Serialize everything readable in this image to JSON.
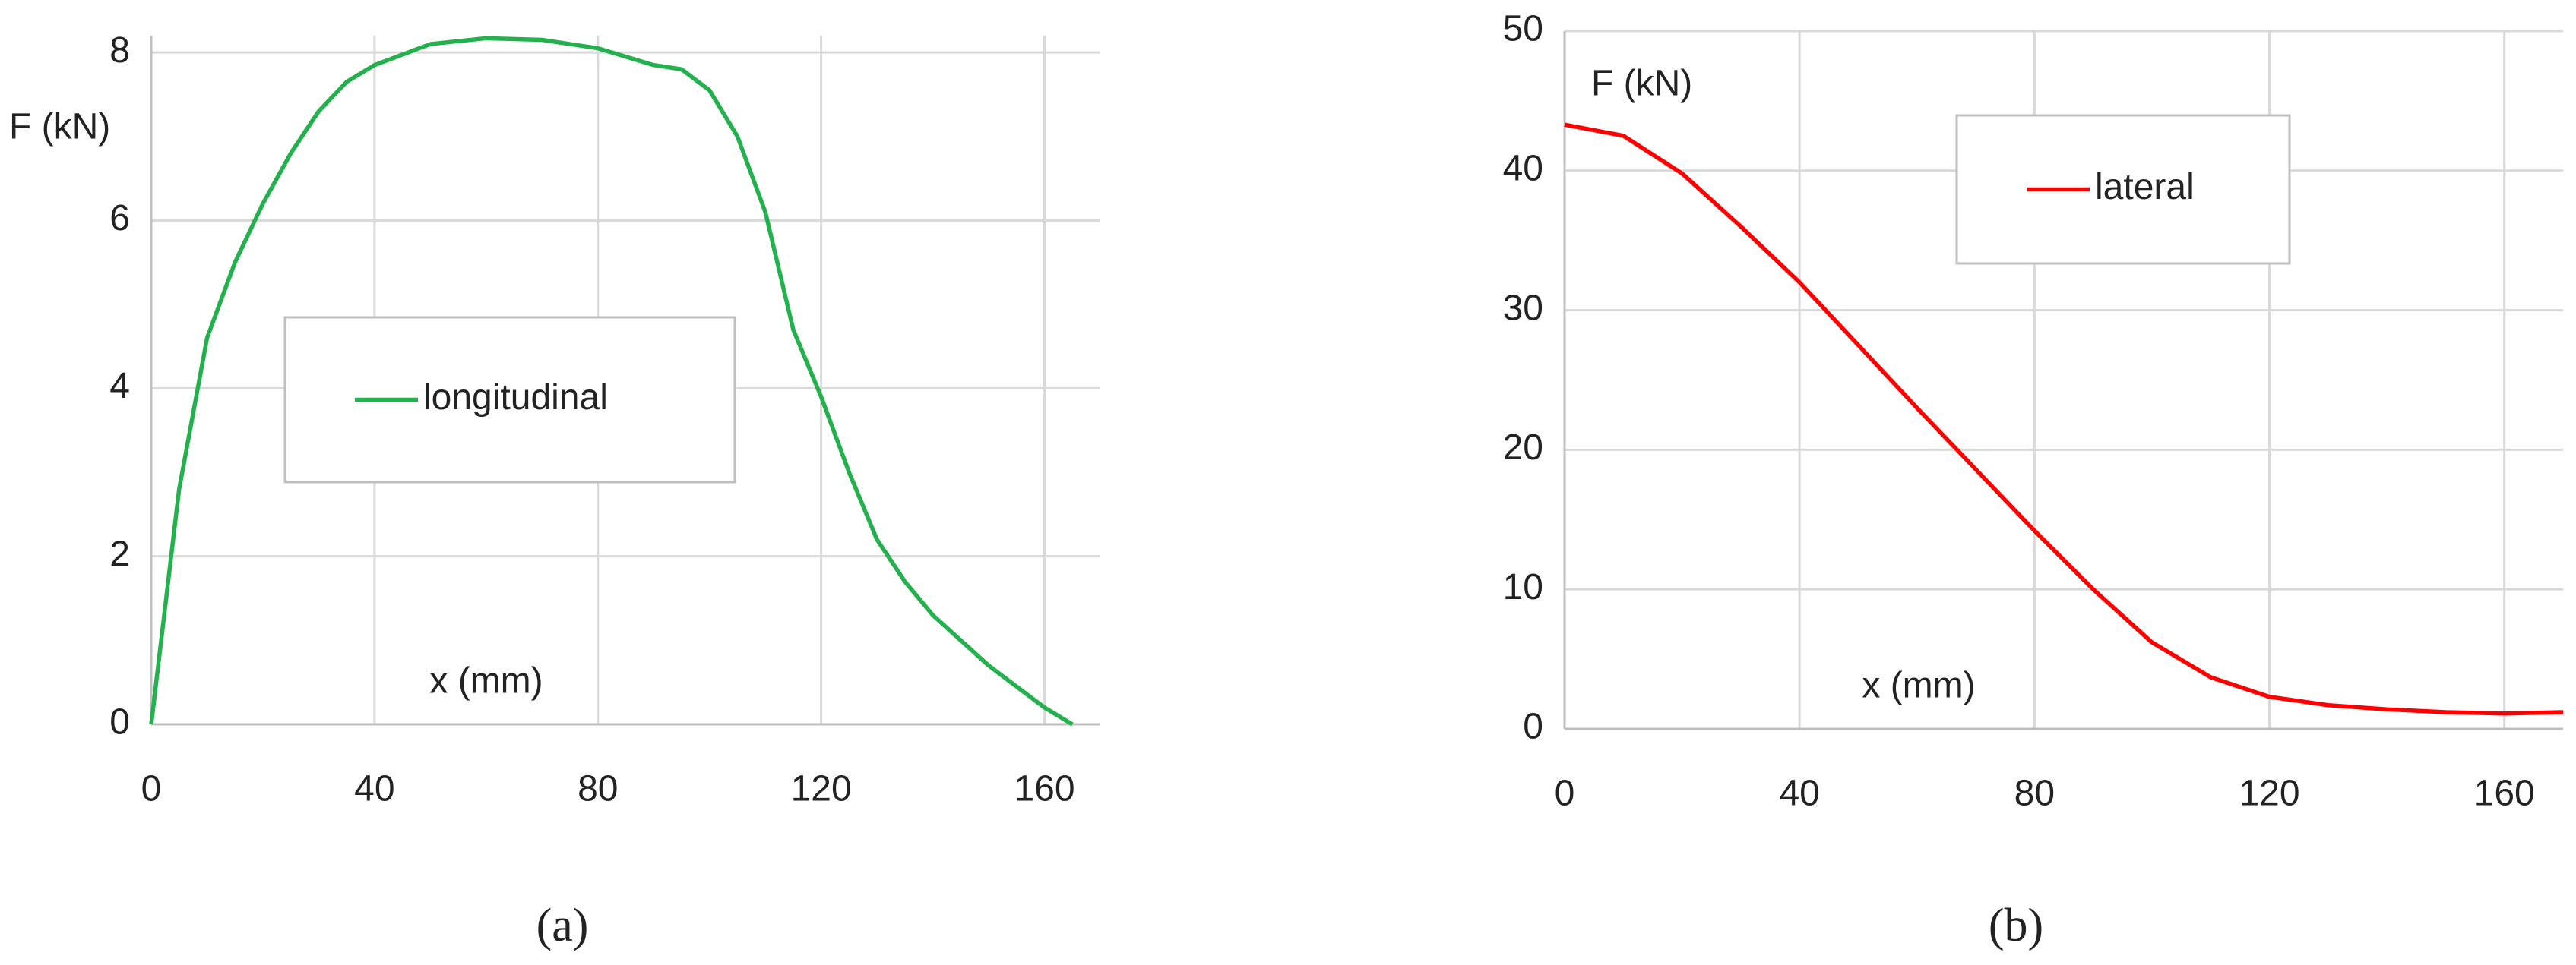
{
  "chart_data": [
    {
      "type": "line",
      "caption": "(a)",
      "y_label": "F (kN)",
      "x_label": "x (mm)",
      "x": [
        0,
        5,
        10,
        15,
        20,
        25,
        30,
        35,
        40,
        50,
        60,
        70,
        80,
        90,
        95,
        100,
        105,
        110,
        115,
        120,
        125,
        130,
        135,
        140,
        150,
        160,
        165
      ],
      "series": [
        {
          "name": "longitudinal",
          "color": "#22b14c",
          "values": [
            0,
            2.8,
            4.6,
            5.5,
            6.2,
            6.8,
            7.3,
            7.65,
            7.85,
            8.1,
            8.17,
            8.15,
            8.05,
            7.85,
            7.8,
            7.55,
            7.0,
            6.1,
            4.7,
            3.9,
            3.0,
            2.2,
            1.7,
            1.3,
            0.7,
            0.2,
            0
          ]
        }
      ],
      "xlim": [
        0,
        170
      ],
      "xticks": [
        0,
        40,
        80,
        120,
        160
      ],
      "ylim": [
        0,
        8.2
      ],
      "yticks": [
        0,
        2,
        4,
        6,
        8
      ],
      "grid": true
    },
    {
      "type": "line",
      "caption": "(b)",
      "y_label": "F (kN)",
      "x_label": "x (mm)",
      "x": [
        0,
        10,
        20,
        30,
        40,
        50,
        60,
        70,
        80,
        90,
        100,
        110,
        120,
        130,
        140,
        150,
        160,
        170
      ],
      "series": [
        {
          "name": "lateral",
          "color": "#ff0000",
          "values": [
            43.3,
            42.5,
            39.8,
            36,
            32,
            27.5,
            23,
            18.6,
            14.2,
            10,
            6.2,
            3.7,
            2.3,
            1.7,
            1.4,
            1.2,
            1.1,
            1.2
          ]
        }
      ],
      "xlim": [
        0,
        170
      ],
      "xticks": [
        0,
        40,
        80,
        120,
        160
      ],
      "ylim": [
        0,
        50
      ],
      "yticks": [
        0,
        10,
        20,
        30,
        40,
        50
      ],
      "grid": true
    }
  ]
}
